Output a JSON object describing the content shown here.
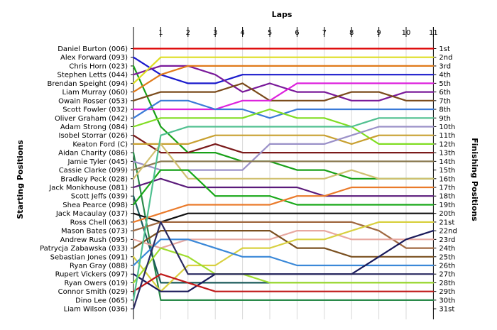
{
  "chart_data": {
    "type": "line",
    "title": "",
    "xlabel": "Laps",
    "ylabel_left": "Starting Positions",
    "ylabel_right": "Finishing Positions",
    "x": [
      0,
      1,
      2,
      3,
      4,
      5,
      6,
      7,
      8,
      9,
      10,
      11
    ],
    "x_tick_labels": [
      "1",
      "2",
      "3",
      "4",
      "5",
      "6",
      "7",
      "8",
      "9",
      "10",
      "11"
    ],
    "finish_labels": [
      "1st",
      "2nd",
      "3rd",
      "4th",
      "5th",
      "6th",
      "7th",
      "8th",
      "9th",
      "10th",
      "11th",
      "12th",
      "13th",
      "14th",
      "15th",
      "16th",
      "17th",
      "18th",
      "19th",
      "20th",
      "21st",
      "22nd",
      "23rd",
      "24th",
      "25th",
      "26th",
      "27th",
      "28th",
      "29th",
      "30th",
      "31st"
    ],
    "series": [
      {
        "name": "Daniel Burton (006)",
        "color": "#dd0000",
        "values": [
          1,
          1,
          1,
          1,
          1,
          1,
          1,
          1,
          1,
          1,
          1,
          1
        ]
      },
      {
        "name": "Alex Forward (093)",
        "color": "#1a1acc",
        "values": [
          2,
          4,
          5,
          5,
          4,
          4,
          4,
          4,
          4,
          4,
          4,
          4
        ]
      },
      {
        "name": "Chris Horn (023)",
        "color": "#18a018",
        "values": [
          3,
          10,
          13,
          13,
          14,
          14,
          15,
          15,
          16,
          16,
          16,
          16
        ]
      },
      {
        "name": "Stephen Letts (044)",
        "color": "#7a1a9a",
        "values": [
          4,
          3,
          3,
          4,
          6,
          5,
          6,
          6,
          7,
          7,
          6,
          6
        ]
      },
      {
        "name": "Brendan Speight (094)",
        "color": "#dede22",
        "values": [
          5,
          2,
          2,
          2,
          2,
          2,
          2,
          2,
          2,
          2,
          2,
          2
        ]
      },
      {
        "name": "Liam Murray (060)",
        "color": "#e07a1a",
        "values": [
          6,
          4,
          3,
          3,
          3,
          3,
          3,
          3,
          3,
          3,
          3,
          3
        ]
      },
      {
        "name": "Owain Rosser (053)",
        "color": "#7a4a1a",
        "values": [
          7,
          6,
          6,
          6,
          5,
          7,
          7,
          7,
          6,
          6,
          7,
          7
        ]
      },
      {
        "name": "Scott Fowler (032)",
        "color": "#dd22dd",
        "values": [
          8,
          8,
          8,
          8,
          7,
          7,
          5,
          5,
          5,
          5,
          5,
          5
        ]
      },
      {
        "name": "Oliver Graham (042)",
        "color": "#3a7ad8",
        "values": [
          9,
          7,
          7,
          8,
          8,
          9,
          8,
          8,
          8,
          8,
          8,
          8
        ]
      },
      {
        "name": "Adam Strong (084)",
        "color": "#80dd22",
        "values": [
          10,
          9,
          9,
          9,
          9,
          8,
          9,
          9,
          10,
          12,
          12,
          12
        ]
      },
      {
        "name": "Isobel Storrar (026)",
        "color": "#7a1a1a",
        "values": [
          11,
          13,
          13,
          12,
          13,
          13,
          13,
          13,
          13,
          13,
          13,
          13
        ]
      },
      {
        "name": "Keaton Ford (C)",
        "color": "#c8a030",
        "values": [
          12,
          12,
          12,
          11,
          11,
          11,
          11,
          11,
          12,
          11,
          11,
          11
        ]
      },
      {
        "name": "Aidan Charity (086)",
        "color": "#2a8a4a",
        "values": [
          13,
          30,
          30,
          30,
          30,
          30,
          30,
          30,
          30,
          30,
          30,
          30
        ]
      },
      {
        "name": "Jamie Tyler (045)",
        "color": "#9a90c8",
        "values": [
          14,
          15,
          15,
          15,
          15,
          12,
          12,
          12,
          11,
          10,
          10,
          10
        ]
      },
      {
        "name": "Cassie Clarke (099)",
        "color": "#8a7a50",
        "values": [
          15,
          14,
          14,
          14,
          14,
          14,
          14,
          14,
          14,
          14,
          14,
          14
        ]
      },
      {
        "name": "Bradley Peck (028)",
        "color": "#d0c070",
        "values": [
          16,
          12,
          16,
          16,
          16,
          16,
          16,
          16,
          15,
          16,
          16,
          16
        ]
      },
      {
        "name": "Jack Monkhouse (081)",
        "color": "#5a1a7a",
        "values": [
          17,
          16,
          17,
          17,
          17,
          17,
          17,
          18,
          18,
          18,
          18,
          18
        ]
      },
      {
        "name": "Scott Jeffs (039)",
        "color": "#1a5a5a",
        "values": [
          18,
          28,
          28,
          28,
          28,
          28,
          28,
          28,
          28,
          28,
          28,
          28
        ]
      },
      {
        "name": "Shea Pearce (098)",
        "color": "#18a818",
        "values": [
          19,
          15,
          15,
          18,
          18,
          18,
          19,
          19,
          19,
          19,
          19,
          19
        ]
      },
      {
        "name": "Jack Macaulay (037)",
        "color": "#101010",
        "values": [
          20,
          21,
          20,
          20,
          20,
          20,
          20,
          20,
          20,
          20,
          20,
          20
        ]
      },
      {
        "name": "Ross Chell (063)",
        "color": "#ea7a2a",
        "values": [
          21,
          20,
          19,
          19,
          19,
          19,
          18,
          18,
          17,
          17,
          17,
          17
        ]
      },
      {
        "name": "Mason Bates (073)",
        "color": "#a06840",
        "values": [
          22,
          21,
          21,
          21,
          21,
          21,
          21,
          21,
          21,
          22,
          24,
          24
        ]
      },
      {
        "name": "Andrew Rush (095)",
        "color": "#e8a8a0",
        "values": [
          23,
          24,
          23,
          23,
          23,
          23,
          22,
          22,
          23,
          23,
          23,
          23
        ]
      },
      {
        "name": "Patrycja Zabawska (033)",
        "color": "#7a5020",
        "values": [
          24,
          22,
          22,
          22,
          22,
          22,
          24,
          24,
          25,
          25,
          25,
          25
        ]
      },
      {
        "name": "Sebastian Jones (091)",
        "color": "#d8d040",
        "values": [
          25,
          29,
          26,
          26,
          24,
          24,
          23,
          23,
          22,
          21,
          21,
          21
        ]
      },
      {
        "name": "Ryan Gray (088)",
        "color": "#3a88d8",
        "values": [
          26,
          23,
          23,
          24,
          25,
          25,
          26,
          26,
          26,
          26,
          26,
          26
        ]
      },
      {
        "name": "Rupert Vickers (097)",
        "color": "#1a1a5a",
        "values": [
          27,
          29,
          29,
          27,
          27,
          27,
          27,
          27,
          27,
          25,
          23,
          22
        ]
      },
      {
        "name": "Ryan Owers (019)",
        "color": "#a0dd30",
        "values": [
          28,
          24,
          25,
          27,
          27,
          28,
          28,
          28,
          28,
          28,
          28,
          28
        ]
      },
      {
        "name": "Connor Smith (029)",
        "color": "#c01a1a",
        "values": [
          29,
          27,
          28,
          29,
          29,
          29,
          29,
          29,
          29,
          29,
          29,
          29
        ]
      },
      {
        "name": "Dino Lee (065)",
        "color": "#50c090",
        "values": [
          30,
          11,
          10,
          10,
          10,
          10,
          10,
          10,
          10,
          9,
          9,
          9
        ]
      },
      {
        "name": "Liam Wilson (036)",
        "color": "#2a2a60",
        "values": [
          31,
          21,
          27,
          27,
          27,
          27,
          27,
          27,
          27,
          27,
          27,
          27
        ]
      }
    ]
  }
}
